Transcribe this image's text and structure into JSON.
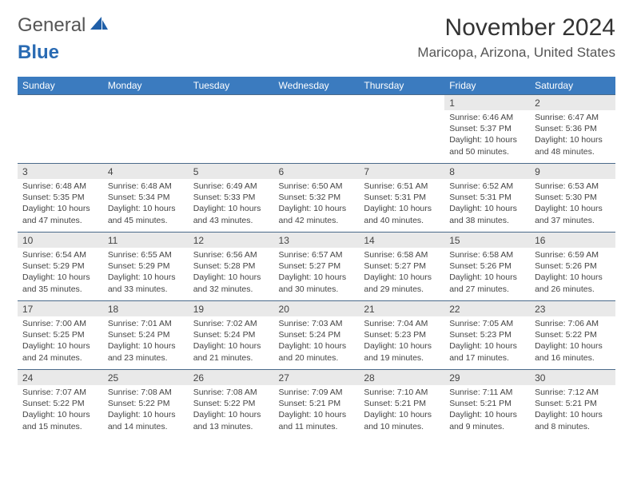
{
  "logo": {
    "first": "General",
    "second": "Blue"
  },
  "title": "November 2024",
  "location": "Maricopa, Arizona, United States",
  "colors": {
    "header_bg": "#3b7bbf",
    "header_text": "#ffffff",
    "daynum_bg": "#e9e9e9",
    "border": "#4a6a8a",
    "text": "#444444",
    "logo_accent": "#2a6bb3"
  },
  "day_names": [
    "Sunday",
    "Monday",
    "Tuesday",
    "Wednesday",
    "Thursday",
    "Friday",
    "Saturday"
  ],
  "weeks": [
    [
      null,
      null,
      null,
      null,
      null,
      {
        "d": "1",
        "sr": "6:46 AM",
        "ss": "5:37 PM",
        "dl": "10 hours and 50 minutes."
      },
      {
        "d": "2",
        "sr": "6:47 AM",
        "ss": "5:36 PM",
        "dl": "10 hours and 48 minutes."
      }
    ],
    [
      {
        "d": "3",
        "sr": "6:48 AM",
        "ss": "5:35 PM",
        "dl": "10 hours and 47 minutes."
      },
      {
        "d": "4",
        "sr": "6:48 AM",
        "ss": "5:34 PM",
        "dl": "10 hours and 45 minutes."
      },
      {
        "d": "5",
        "sr": "6:49 AM",
        "ss": "5:33 PM",
        "dl": "10 hours and 43 minutes."
      },
      {
        "d": "6",
        "sr": "6:50 AM",
        "ss": "5:32 PM",
        "dl": "10 hours and 42 minutes."
      },
      {
        "d": "7",
        "sr": "6:51 AM",
        "ss": "5:31 PM",
        "dl": "10 hours and 40 minutes."
      },
      {
        "d": "8",
        "sr": "6:52 AM",
        "ss": "5:31 PM",
        "dl": "10 hours and 38 minutes."
      },
      {
        "d": "9",
        "sr": "6:53 AM",
        "ss": "5:30 PM",
        "dl": "10 hours and 37 minutes."
      }
    ],
    [
      {
        "d": "10",
        "sr": "6:54 AM",
        "ss": "5:29 PM",
        "dl": "10 hours and 35 minutes."
      },
      {
        "d": "11",
        "sr": "6:55 AM",
        "ss": "5:29 PM",
        "dl": "10 hours and 33 minutes."
      },
      {
        "d": "12",
        "sr": "6:56 AM",
        "ss": "5:28 PM",
        "dl": "10 hours and 32 minutes."
      },
      {
        "d": "13",
        "sr": "6:57 AM",
        "ss": "5:27 PM",
        "dl": "10 hours and 30 minutes."
      },
      {
        "d": "14",
        "sr": "6:58 AM",
        "ss": "5:27 PM",
        "dl": "10 hours and 29 minutes."
      },
      {
        "d": "15",
        "sr": "6:58 AM",
        "ss": "5:26 PM",
        "dl": "10 hours and 27 minutes."
      },
      {
        "d": "16",
        "sr": "6:59 AM",
        "ss": "5:26 PM",
        "dl": "10 hours and 26 minutes."
      }
    ],
    [
      {
        "d": "17",
        "sr": "7:00 AM",
        "ss": "5:25 PM",
        "dl": "10 hours and 24 minutes."
      },
      {
        "d": "18",
        "sr": "7:01 AM",
        "ss": "5:24 PM",
        "dl": "10 hours and 23 minutes."
      },
      {
        "d": "19",
        "sr": "7:02 AM",
        "ss": "5:24 PM",
        "dl": "10 hours and 21 minutes."
      },
      {
        "d": "20",
        "sr": "7:03 AM",
        "ss": "5:24 PM",
        "dl": "10 hours and 20 minutes."
      },
      {
        "d": "21",
        "sr": "7:04 AM",
        "ss": "5:23 PM",
        "dl": "10 hours and 19 minutes."
      },
      {
        "d": "22",
        "sr": "7:05 AM",
        "ss": "5:23 PM",
        "dl": "10 hours and 17 minutes."
      },
      {
        "d": "23",
        "sr": "7:06 AM",
        "ss": "5:22 PM",
        "dl": "10 hours and 16 minutes."
      }
    ],
    [
      {
        "d": "24",
        "sr": "7:07 AM",
        "ss": "5:22 PM",
        "dl": "10 hours and 15 minutes."
      },
      {
        "d": "25",
        "sr": "7:08 AM",
        "ss": "5:22 PM",
        "dl": "10 hours and 14 minutes."
      },
      {
        "d": "26",
        "sr": "7:08 AM",
        "ss": "5:22 PM",
        "dl": "10 hours and 13 minutes."
      },
      {
        "d": "27",
        "sr": "7:09 AM",
        "ss": "5:21 PM",
        "dl": "10 hours and 11 minutes."
      },
      {
        "d": "28",
        "sr": "7:10 AM",
        "ss": "5:21 PM",
        "dl": "10 hours and 10 minutes."
      },
      {
        "d": "29",
        "sr": "7:11 AM",
        "ss": "5:21 PM",
        "dl": "10 hours and 9 minutes."
      },
      {
        "d": "30",
        "sr": "7:12 AM",
        "ss": "5:21 PM",
        "dl": "10 hours and 8 minutes."
      }
    ]
  ],
  "labels": {
    "sunrise": "Sunrise: ",
    "sunset": "Sunset: ",
    "daylight": "Daylight: "
  }
}
